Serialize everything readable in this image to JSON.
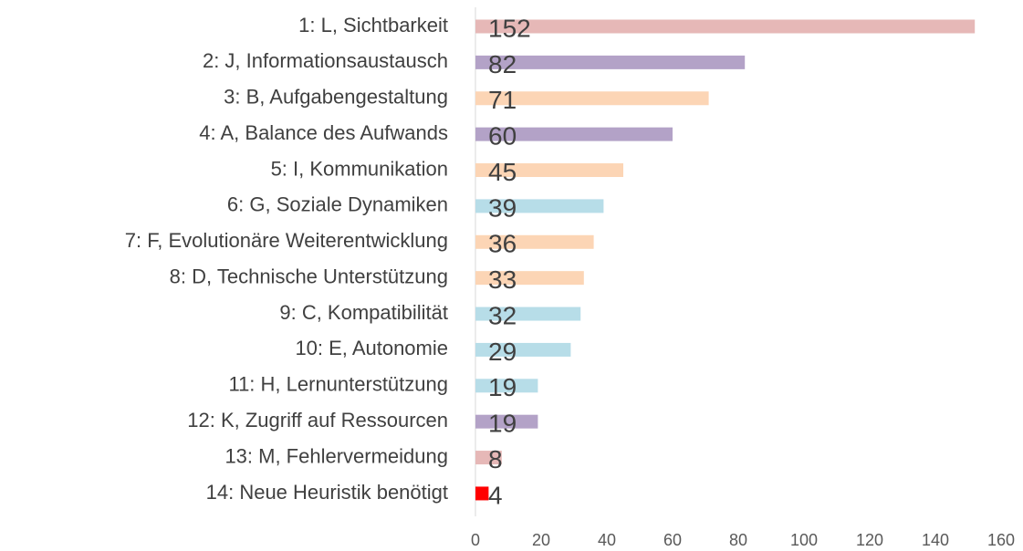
{
  "chart_data": {
    "type": "bar",
    "orientation": "horizontal",
    "categories": [
      "1: L, Sichtbarkeit",
      "2: J, Informationsaustausch",
      "3: B, Aufgabengestaltung",
      "4: A, Balance des Aufwands",
      "5: I, Kommunikation",
      "6: G, Soziale Dynamiken",
      "7: F, Evolutionäre Weiterentwicklung",
      "8: D, Technische Unterstützung",
      "9: C, Kompatibilität",
      "10: E, Autonomie",
      "11: H, Lernunterstützung",
      "12: K, Zugriff auf Ressourcen",
      "13: M, Fehlervermeidung",
      "14: Neue Heuristik benötigt"
    ],
    "values": [
      152,
      82,
      71,
      60,
      45,
      39,
      36,
      33,
      32,
      29,
      19,
      19,
      8,
      4
    ],
    "colors": [
      "#e6b8b7",
      "#b3a2c7",
      "#fcd5b5",
      "#b3a2c7",
      "#fcd5b5",
      "#b7dde8",
      "#fcd5b5",
      "#fcd5b5",
      "#b7dde8",
      "#b7dde8",
      "#b7dde8",
      "#b3a2c7",
      "#e6b8b7",
      "#ff0000"
    ],
    "xlim": [
      0,
      160
    ],
    "xticks": [
      0,
      20,
      40,
      60,
      80,
      100,
      120,
      140,
      160
    ],
    "grid": false
  }
}
